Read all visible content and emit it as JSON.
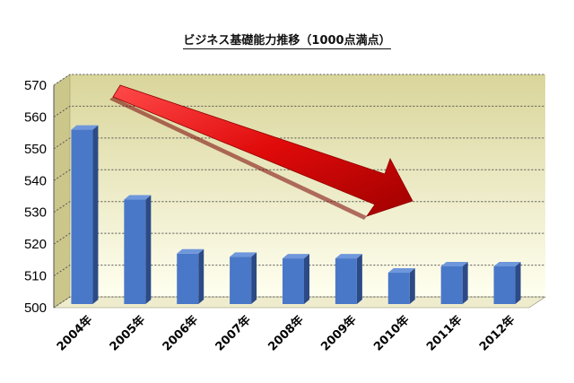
{
  "chart_data": {
    "type": "bar",
    "title": "ビジネス基礎能力推移（1000点満点）",
    "categories": [
      "2004年",
      "2005年",
      "2006年",
      "2007年",
      "2008年",
      "2009年",
      "2010年",
      "2011年",
      "2012年"
    ],
    "values": [
      556,
      534,
      517,
      516,
      515.5,
      515.5,
      511,
      513,
      513
    ],
    "ylim": [
      500,
      570
    ],
    "yticks": [
      500,
      510,
      520,
      530,
      540,
      550,
      560,
      570
    ],
    "grid": true,
    "bar_color": "#4a78c8",
    "background_gradient": [
      "#d9d59a",
      "#fffff0"
    ],
    "annotation": "red-downward-trend-arrow",
    "arrow_color": "#e01010"
  }
}
